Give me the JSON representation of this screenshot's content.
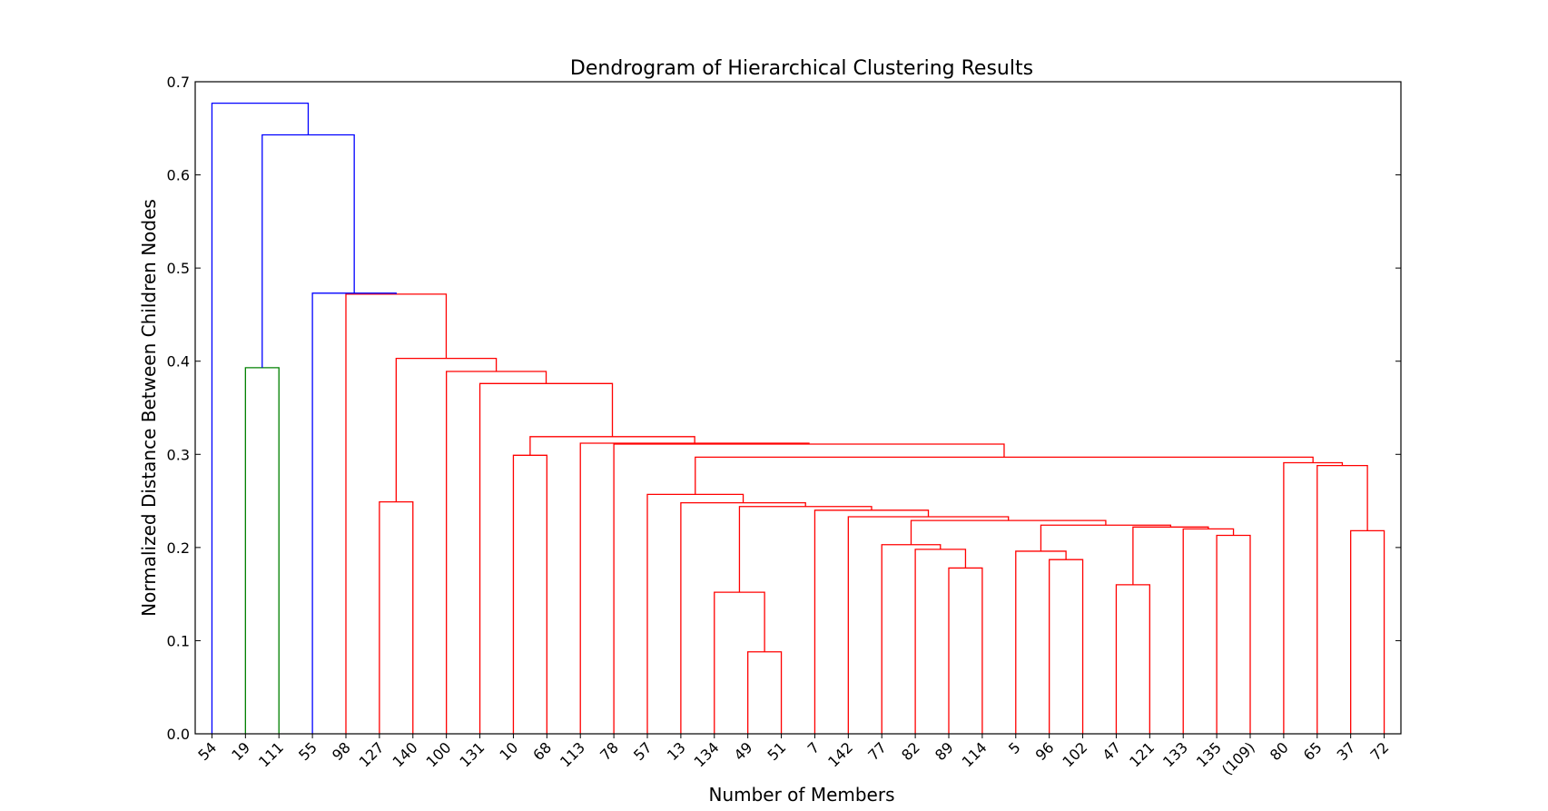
{
  "chart_data": {
    "type": "dendrogram",
    "title": "Dendrogram of Hierarchical Clustering Results",
    "xlabel": "Number of Members",
    "ylabel": "Normalized Distance Between Children Nodes",
    "ylim": [
      0,
      0.7
    ],
    "yticks": [
      "0.0",
      "0.1",
      "0.2",
      "0.3",
      "0.4",
      "0.5",
      "0.6",
      "0.7"
    ],
    "leaves": [
      "54",
      "19",
      "111",
      "55",
      "98",
      "127",
      "140",
      "100",
      "131",
      "10",
      "68",
      "113",
      "78",
      "57",
      "13",
      "134",
      "49",
      "51",
      "7",
      "142",
      "77",
      "82",
      "89",
      "114",
      "5",
      "96",
      "102",
      "47",
      "121",
      "133",
      "135",
      "(109)",
      "80",
      "65",
      "37",
      "72"
    ],
    "colors": {
      "above_threshold": "#0000ff",
      "cluster_green": "#008000",
      "cluster_red": "#ff0000"
    },
    "merges": [
      {
        "left": "L49",
        "right": "L51",
        "height": 0.088,
        "color": "cluster_red"
      },
      {
        "left": "L134",
        "right": "N0",
        "height": 0.152,
        "color": "cluster_red"
      },
      {
        "left": "L47",
        "right": "L121",
        "height": 0.16,
        "color": "cluster_red"
      },
      {
        "left": "L89",
        "right": "L114",
        "height": 0.178,
        "color": "cluster_red"
      },
      {
        "left": "L96",
        "right": "L102",
        "height": 0.187,
        "color": "cluster_red"
      },
      {
        "left": "L5",
        "right": "N4",
        "height": 0.196,
        "color": "cluster_red"
      },
      {
        "left": "L82",
        "right": "N3",
        "height": 0.198,
        "color": "cluster_red"
      },
      {
        "left": "L77",
        "right": "N6",
        "height": 0.203,
        "color": "cluster_red"
      },
      {
        "left": "L135",
        "right": "L(109)",
        "height": 0.213,
        "color": "cluster_red"
      },
      {
        "left": "L37",
        "right": "L72",
        "height": 0.218,
        "color": "cluster_red"
      },
      {
        "left": "L133",
        "right": "N8",
        "height": 0.22,
        "color": "cluster_red"
      },
      {
        "left": "N2",
        "right": "N10",
        "height": 0.222,
        "color": "cluster_red"
      },
      {
        "left": "N5",
        "right": "N11",
        "height": 0.224,
        "color": "cluster_red"
      },
      {
        "left": "N7",
        "right": "N12",
        "height": 0.229,
        "color": "cluster_red"
      },
      {
        "left": "L142",
        "right": "N13",
        "height": 0.233,
        "color": "cluster_red"
      },
      {
        "left": "L7",
        "right": "N14",
        "height": 0.24,
        "color": "cluster_red"
      },
      {
        "left": "N1",
        "right": "N15",
        "height": 0.244,
        "color": "cluster_red"
      },
      {
        "left": "L13",
        "right": "N16",
        "height": 0.248,
        "color": "cluster_red"
      },
      {
        "left": "L127",
        "right": "L140",
        "height": 0.249,
        "color": "cluster_red"
      },
      {
        "left": "L57",
        "right": "N17",
        "height": 0.257,
        "color": "cluster_red"
      },
      {
        "left": "L65",
        "right": "N9",
        "height": 0.288,
        "color": "cluster_red"
      },
      {
        "left": "L80",
        "right": "N20",
        "height": 0.291,
        "color": "cluster_red"
      },
      {
        "left": "N19",
        "right": "N21",
        "height": 0.297,
        "color": "cluster_red"
      },
      {
        "left": "L10",
        "right": "L68",
        "height": 0.299,
        "color": "cluster_red"
      },
      {
        "left": "L78",
        "right": "N22",
        "height": 0.311,
        "color": "cluster_red"
      },
      {
        "left": "L113",
        "right": "N24",
        "height": 0.312,
        "color": "cluster_red"
      },
      {
        "left": "N23",
        "right": "N25",
        "height": 0.319,
        "color": "cluster_red"
      },
      {
        "left": "L131",
        "right": "N26",
        "height": 0.376,
        "color": "cluster_red"
      },
      {
        "left": "L100",
        "right": "N27",
        "height": 0.389,
        "color": "cluster_red"
      },
      {
        "left": "L19",
        "right": "L111",
        "height": 0.393,
        "color": "cluster_green"
      },
      {
        "left": "N18",
        "right": "N28",
        "height": 0.403,
        "color": "cluster_red"
      },
      {
        "left": "L98",
        "right": "N30",
        "height": 0.472,
        "color": "cluster_red"
      },
      {
        "left": "L55",
        "right": "N31",
        "height": 0.473,
        "color": "above_threshold"
      },
      {
        "left": "N29",
        "right": "N32",
        "height": 0.643,
        "color": "above_threshold"
      },
      {
        "left": "L54",
        "right": "N33",
        "height": 0.677,
        "color": "above_threshold"
      }
    ]
  }
}
